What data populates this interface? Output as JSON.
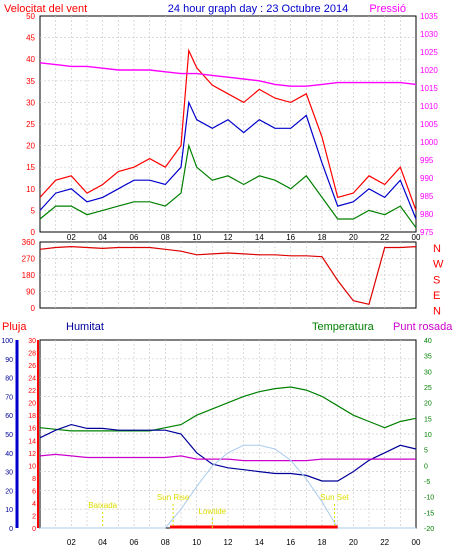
{
  "header": {
    "left": "Velocitat del vent",
    "center": "24 hour graph day : 23 Octubre 2014",
    "right": "Pressió"
  },
  "colors": {
    "wind": "#ff0000",
    "gust_avg": "#0000cc",
    "wind_low": "#008000",
    "pressure": "#ff00ff",
    "direction": "#dd0000",
    "humidity": "#000099",
    "temperature": "#008000",
    "dewpoint": "#cc00cc",
    "sun": "#aaccee",
    "rain": "#ff0000",
    "annotation": "#dddd00"
  },
  "chart_data": [
    {
      "type": "line",
      "ylim": [
        0,
        50
      ],
      "y2lim": [
        975,
        1035
      ],
      "yticks": [
        "0",
        "5",
        "10",
        "15",
        "20",
        "25",
        "30",
        "35",
        "40",
        "45",
        "50"
      ],
      "y2ticks": [
        "975",
        "980",
        "985",
        "990",
        "995",
        "1000",
        "1005",
        "1010",
        "1015",
        "1020",
        "1025",
        "1030",
        "1035"
      ],
      "xticks": [
        "02",
        "04",
        "06",
        "08",
        "10",
        "12",
        "14",
        "16",
        "18",
        "20",
        "22",
        "00"
      ],
      "x": [
        0,
        1,
        2,
        3,
        4,
        5,
        6,
        7,
        8,
        9,
        9.5,
        10,
        11,
        12,
        13,
        14,
        15,
        16,
        17,
        18,
        19,
        20,
        21,
        22,
        23,
        24
      ],
      "series": [
        {
          "key": "wind",
          "values": [
            8,
            12,
            13,
            9,
            11,
            14,
            15,
            17,
            15,
            20,
            42,
            38,
            34,
            32,
            30,
            33,
            31,
            30,
            32,
            22,
            8,
            9,
            13,
            11,
            15,
            5
          ]
        },
        {
          "key": "gust_avg",
          "values": [
            5,
            9,
            10,
            7,
            8,
            10,
            12,
            12,
            11,
            15,
            30,
            26,
            24,
            26,
            23,
            26,
            24,
            24,
            27,
            16,
            6,
            7,
            10,
            8,
            12,
            3
          ]
        },
        {
          "key": "wind_low",
          "values": [
            3,
            6,
            6,
            4,
            5,
            6,
            7,
            7,
            6,
            9,
            20,
            15,
            12,
            13,
            11,
            13,
            12,
            10,
            13,
            8,
            3,
            3,
            5,
            4,
            6,
            1
          ]
        },
        {
          "key": "pressure",
          "values": [
            1022,
            1021.5,
            1021,
            1021,
            1020.5,
            1020,
            1020,
            1020,
            1019.5,
            1019,
            1019,
            1019,
            1018.5,
            1018,
            1017.5,
            1017,
            1016,
            1015.5,
            1015.5,
            1016,
            1016.5,
            1016.5,
            1016.5,
            1016.5,
            1016.5,
            1016
          ]
        }
      ]
    },
    {
      "type": "line",
      "ylim": [
        0,
        360
      ],
      "yticks": [
        "0",
        "90",
        "180",
        "270",
        "360"
      ],
      "y2labels": [
        "N",
        "W",
        "S",
        "E",
        "N"
      ],
      "x": [
        0,
        1,
        2,
        3,
        4,
        5,
        6,
        7,
        8,
        9,
        10,
        11,
        12,
        13,
        14,
        15,
        16,
        17,
        18,
        19,
        20,
        21,
        22,
        23,
        24
      ],
      "series": [
        {
          "key": "direction",
          "values": [
            320,
            330,
            335,
            330,
            325,
            330,
            330,
            330,
            320,
            310,
            290,
            295,
            300,
            295,
            290,
            290,
            285,
            285,
            280,
            150,
            40,
            20,
            330,
            330,
            335
          ]
        }
      ]
    },
    {
      "type": "line",
      "left_title": "Pluja",
      "left2_title": "Humitat",
      "right_title": "Temperatura",
      "right2_title": "Punt rosada",
      "humidity_ticks": [
        "0",
        "10",
        "20",
        "30",
        "40",
        "50",
        "60",
        "70",
        "80",
        "90",
        "100"
      ],
      "rain_ticks": [
        "0",
        "2",
        "4",
        "6",
        "8",
        "10",
        "12",
        "14",
        "16",
        "18",
        "20",
        "22",
        "24",
        "26",
        "28",
        "30"
      ],
      "temp_ticks": [
        "-20",
        "-15",
        "-10",
        "-5",
        "0",
        "5",
        "10",
        "15",
        "20",
        "25",
        "30",
        "35",
        "40"
      ],
      "xticks": [
        "02",
        "04",
        "06",
        "08",
        "10",
        "12",
        "14",
        "16",
        "18",
        "20",
        "22",
        "00"
      ],
      "annotations": [
        "Baixada",
        "Sun Rise",
        "Lowtide",
        "Sun Set"
      ],
      "x": [
        0,
        1,
        2,
        3,
        4,
        5,
        6,
        7,
        8,
        9,
        10,
        11,
        12,
        13,
        14,
        15,
        16,
        17,
        18,
        19,
        20,
        21,
        22,
        23,
        24
      ],
      "series": [
        {
          "key": "temperature",
          "values": [
            12,
            11.5,
            11,
            11,
            11,
            11,
            11,
            11,
            12,
            13,
            16,
            18,
            20,
            22,
            23.5,
            24.5,
            25,
            24,
            22,
            19,
            16,
            14,
            12,
            14,
            15
          ]
        },
        {
          "key": "humidity",
          "values": [
            48,
            52,
            55,
            53,
            53,
            52,
            52,
            52,
            52,
            50,
            40,
            34,
            32,
            31,
            30,
            29,
            29,
            28,
            25,
            25,
            30,
            36,
            40,
            44,
            42
          ]
        },
        {
          "key": "dewpoint",
          "values": [
            3,
            3.5,
            3,
            2.5,
            2.5,
            2.5,
            2.5,
            2.5,
            2.5,
            3,
            2,
            2,
            2,
            1.5,
            1.5,
            1.5,
            1.5,
            1.5,
            2,
            2,
            2,
            2,
            2,
            2,
            2
          ]
        },
        {
          "key": "sun",
          "values": [
            0,
            0,
            0,
            0,
            0,
            0,
            0,
            0,
            0,
            10,
            22,
            33,
            40,
            44,
            44,
            42,
            36,
            26,
            14,
            0,
            0,
            0,
            0,
            0,
            0
          ]
        }
      ]
    }
  ]
}
